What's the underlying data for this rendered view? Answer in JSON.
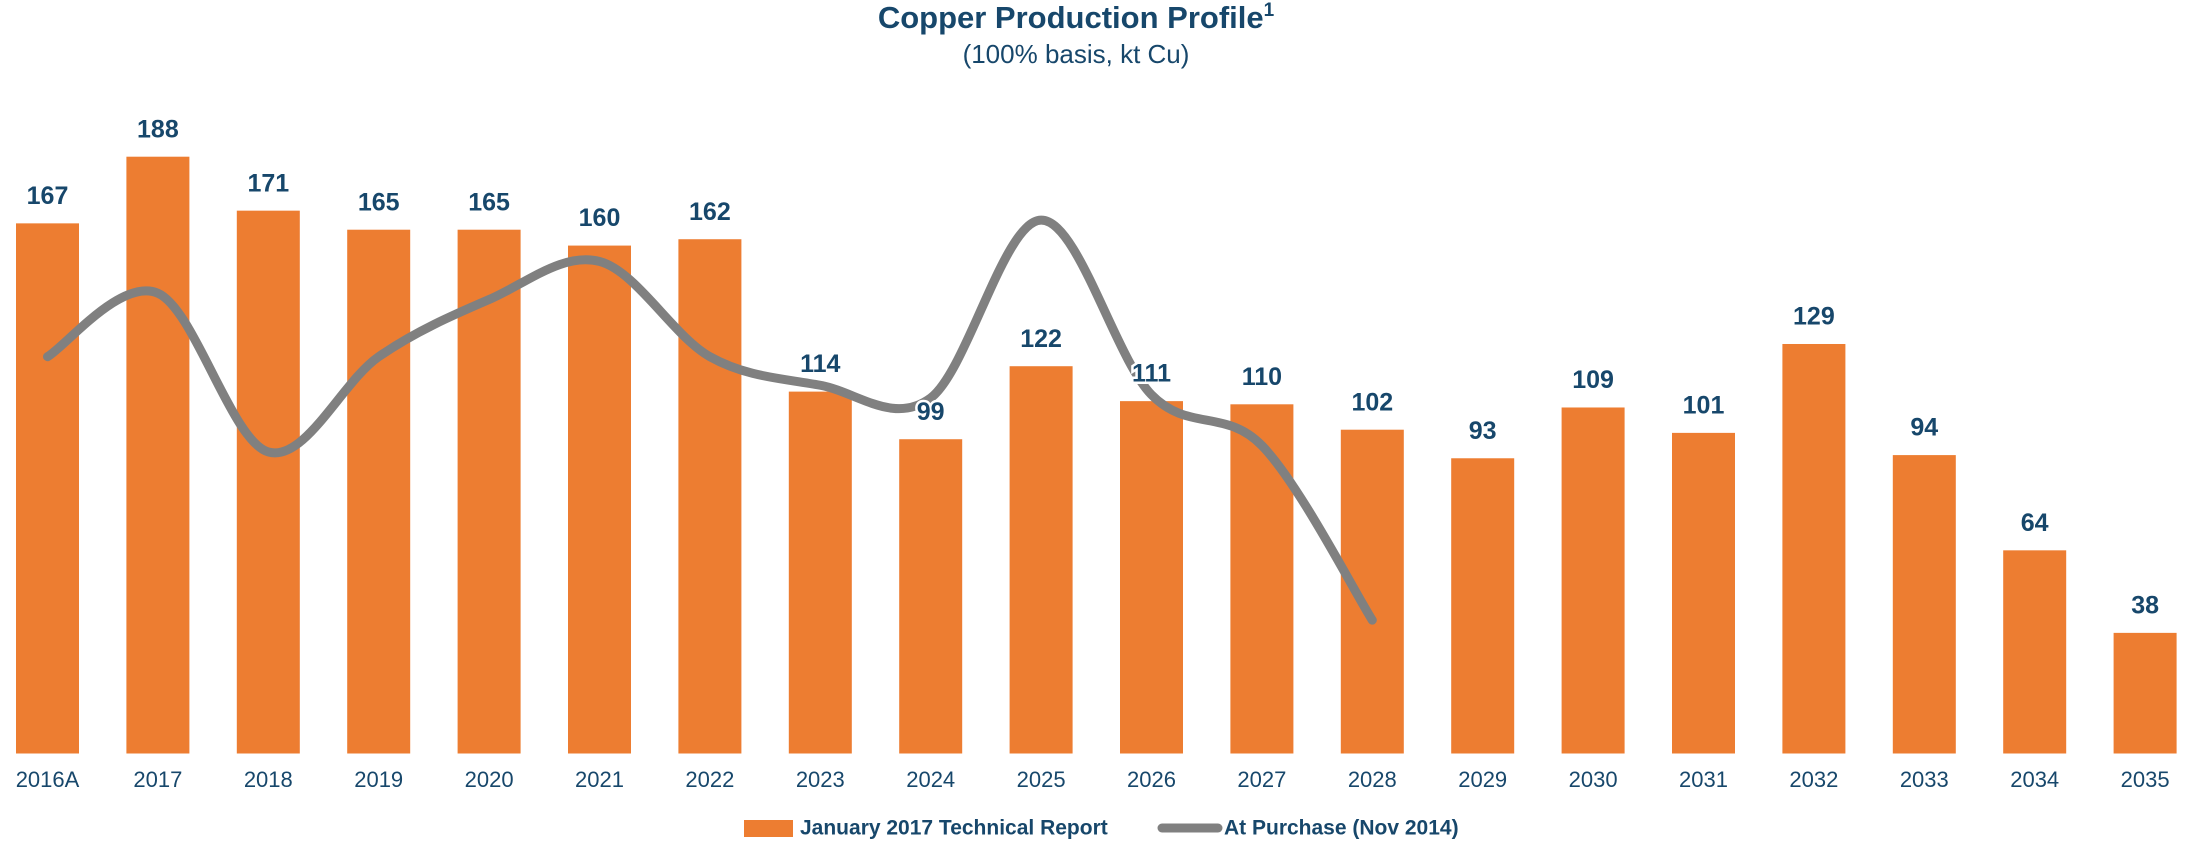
{
  "chart_data": {
    "type": "bar",
    "title": "Copper Production Profile",
    "title_footnote": "1",
    "subtitle": "(100% basis, kt Cu)",
    "categories": [
      "2016A",
      "2017",
      "2018",
      "2019",
      "2020",
      "2021",
      "2022",
      "2023",
      "2024",
      "2025",
      "2026",
      "2027",
      "2028",
      "2029",
      "2030",
      "2031",
      "2032",
      "2033",
      "2034",
      "2035"
    ],
    "ylim": [
      0,
      200
    ],
    "grid": false,
    "legend": "bottom",
    "series": [
      {
        "name": "January 2017 Technical Report",
        "type": "bar",
        "color": "#ed7d31",
        "values": [
          167,
          188,
          171,
          165,
          165,
          160,
          162,
          114,
          99,
          122,
          111,
          110,
          102,
          93,
          109,
          101,
          129,
          94,
          64,
          38
        ]
      },
      {
        "name": "At Purchase (Nov 2014)",
        "type": "line",
        "color": "#808080",
        "values": [
          125,
          145,
          95,
          125,
          143,
          155,
          125,
          116,
          112,
          168,
          113,
          97,
          42,
          null,
          null,
          null,
          null,
          null,
          null,
          null
        ]
      }
    ]
  }
}
